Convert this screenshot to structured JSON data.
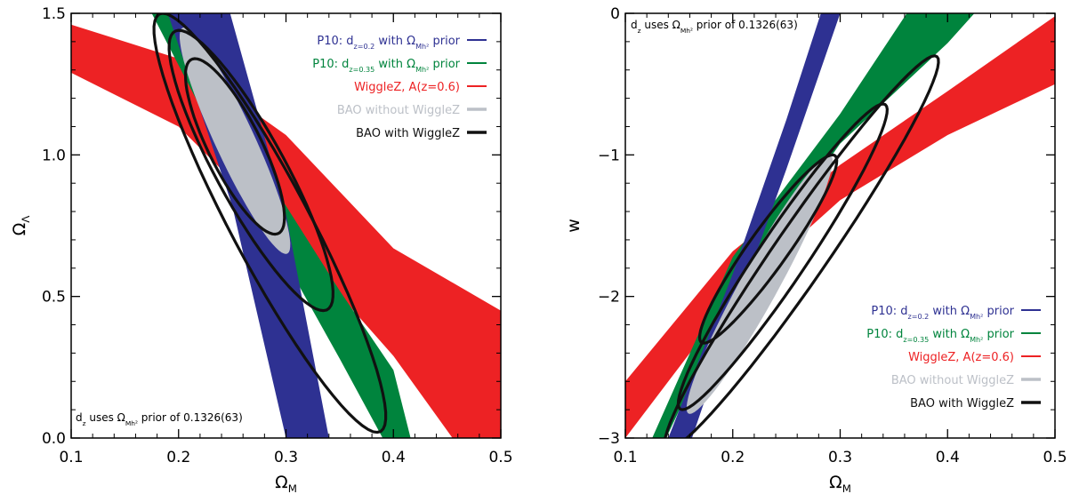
{
  "colors": {
    "blue": "#2e3192",
    "green": "#00843d",
    "red": "#ed2224",
    "grey": "#bcc0c7",
    "black": "#111111"
  },
  "chart_data": [
    {
      "type": "area",
      "xlabel": "Ω_M",
      "ylabel": "Ω_Λ",
      "xlim": [
        0.1,
        0.5
      ],
      "ylim": [
        0.0,
        1.5
      ],
      "x_ticks": [
        "0.1",
        "0.2",
        "0.3",
        "0.4",
        "0.5"
      ],
      "y_ticks": [
        "0.0",
        "0.5",
        "1.0",
        "1.5"
      ],
      "note": "d_z uses Ω_Mh² prior of 0.1326(63)",
      "note_position": "bottom-left",
      "legend_position": "top-right",
      "legend": [
        {
          "text": "P10: d_z=0.2 with Ω_Mh² prior",
          "color": "blue"
        },
        {
          "text": "P10: d_z=0.35 with Ω_Mh² prior",
          "color": "green"
        },
        {
          "text": "WiggleZ, A(z=0.6)",
          "color": "red"
        },
        {
          "text": "BAO without WiggleZ",
          "color": "grey"
        },
        {
          "text": "BAO with WiggleZ",
          "color": "black"
        }
      ],
      "bands": [
        {
          "series": "WiggleZ, A(z=0.6)",
          "color": "red",
          "lower": [
            [
              0.1,
              1.29
            ],
            [
              0.2,
              1.1
            ],
            [
              0.3,
              0.72
            ],
            [
              0.4,
              0.29
            ],
            [
              0.455,
              0.0
            ]
          ],
          "upper": [
            [
              0.1,
              1.46
            ],
            [
              0.2,
              1.34
            ],
            [
              0.3,
              1.07
            ],
            [
              0.4,
              0.67
            ],
            [
              0.5,
              0.45
            ],
            [
              0.5,
              0.0
            ]
          ]
        },
        {
          "series": "P10: d_z=0.35 with Ω_Mh² prior",
          "color": "green",
          "lower": [
            [
              0.175,
              1.5
            ],
            [
              0.25,
              0.95
            ],
            [
              0.3,
              0.62
            ],
            [
              0.35,
              0.28
            ],
            [
              0.39,
              0.0
            ]
          ],
          "upper": [
            [
              0.202,
              1.5
            ],
            [
              0.25,
              1.13
            ],
            [
              0.3,
              0.82
            ],
            [
              0.35,
              0.52
            ],
            [
              0.4,
              0.24
            ],
            [
              0.416,
              0.0
            ]
          ]
        },
        {
          "series": "P10: d_z=0.2 with Ω_Mh² prior",
          "color": "blue",
          "lower": [
            [
              0.19,
              1.5
            ],
            [
              0.25,
              0.82
            ],
            [
              0.3,
              0.0
            ]
          ],
          "upper": [
            [
              0.248,
              1.5
            ],
            [
              0.3,
              0.79
            ],
            [
              0.34,
              0.0
            ]
          ]
        }
      ],
      "filled_ellipses": [
        {
          "series": "BAO without WiggleZ",
          "color": "grey",
          "center": [
            0.253,
            0.98
          ],
          "ends": [
            [
              0.205,
              1.45
            ],
            [
              0.3,
              0.65
            ]
          ],
          "minor_halfwidth": 0.02
        }
      ],
      "contours": [
        {
          "level": "1σ",
          "center": [
            0.25,
            1.0
          ],
          "ends": [
            [
              0.215,
              1.34
            ],
            [
              0.29,
              0.72
            ]
          ],
          "minor_halfwidth": 0.027
        },
        {
          "level": "2σ",
          "center": [
            0.266,
            0.86
          ],
          "ends": [
            [
              0.2,
              1.44
            ],
            [
              0.335,
              0.45
            ]
          ],
          "minor_halfwidth": 0.036
        },
        {
          "level": "3σ",
          "center": [
            0.285,
            0.71
          ],
          "ends": [
            [
              0.185,
              1.5
            ],
            [
              0.385,
              0.02
            ]
          ],
          "minor_halfwidth": 0.041
        }
      ]
    },
    {
      "type": "area",
      "xlabel": "Ω_M",
      "ylabel": "w",
      "xlim": [
        0.1,
        0.5
      ],
      "ylim": [
        -3,
        0
      ],
      "x_ticks": [
        "0.1",
        "0.2",
        "0.3",
        "0.4",
        "0.5"
      ],
      "y_ticks": [
        "−3",
        "−2",
        "−1",
        "0"
      ],
      "note": "d_z uses Ω_Mh² prior of 0.1326(63)",
      "note_position": "top-left",
      "legend_position": "bottom-right",
      "legend": [
        {
          "text": "P10: d_z=0.2 with Ω_Mh² prior",
          "color": "blue"
        },
        {
          "text": "P10: d_z=0.35 with Ω_Mh² prior",
          "color": "green"
        },
        {
          "text": "WiggleZ, A(z=0.6)",
          "color": "red"
        },
        {
          "text": "BAO without WiggleZ",
          "color": "grey"
        },
        {
          "text": "BAO with WiggleZ",
          "color": "black"
        }
      ],
      "bands": [
        {
          "series": "WiggleZ, A(z=0.6)",
          "color": "red",
          "lower": [
            [
              0.1,
              -3.0
            ],
            [
              0.2,
              -2.0
            ],
            [
              0.3,
              -1.32
            ],
            [
              0.4,
              -0.86
            ],
            [
              0.5,
              -0.5
            ]
          ],
          "upper": [
            [
              0.1,
              -2.6
            ],
            [
              0.2,
              -1.68
            ],
            [
              0.3,
              -1.07
            ],
            [
              0.4,
              -0.55
            ],
            [
              0.5,
              -0.02
            ]
          ]
        },
        {
          "series": "P10: d_z=0.35 with Ω_Mh² prior",
          "color": "green",
          "lower": [
            [
              0.138,
              -3.0
            ],
            [
              0.2,
              -2.0
            ],
            [
              0.3,
              -0.92
            ],
            [
              0.4,
              -0.21
            ],
            [
              0.425,
              0.0
            ]
          ],
          "upper": [
            [
              0.125,
              -3.0
            ],
            [
              0.2,
              -1.72
            ],
            [
              0.3,
              -0.71
            ],
            [
              0.362,
              0.0
            ]
          ]
        },
        {
          "series": "P10: d_z=0.2 with Ω_Mh² prior",
          "color": "blue",
          "lower": [
            [
              0.162,
              -3.0
            ],
            [
              0.2,
              -2.15
            ],
            [
              0.25,
              -1.1
            ],
            [
              0.3,
              0.0
            ]
          ],
          "upper": [
            [
              0.14,
              -3.0
            ],
            [
              0.2,
              -1.84
            ],
            [
              0.25,
              -0.75
            ],
            [
              0.282,
              0.0
            ]
          ]
        }
      ],
      "filled_ellipses": [
        {
          "series": "BAO without WiggleZ",
          "color": "grey",
          "center": [
            0.225,
            -1.97
          ],
          "ends": [
            [
              0.16,
              -2.83
            ],
            [
              0.29,
              -1.0
            ]
          ],
          "minor_halfwidth": 0.02
        }
      ],
      "contours": [
        {
          "level": "1σ",
          "center": [
            0.233,
            -1.67
          ],
          "ends": [
            [
              0.173,
              -2.33
            ],
            [
              0.293,
              -1.0
            ]
          ],
          "minor_halfwidth": 0.022
        },
        {
          "level": "2σ",
          "center": [
            0.246,
            -1.72
          ],
          "ends": [
            [
              0.153,
              -2.8
            ],
            [
              0.34,
              -0.64
            ]
          ],
          "minor_halfwidth": 0.027
        },
        {
          "level": "3σ",
          "center": [
            0.264,
            -1.69
          ],
          "ends": [
            [
              0.14,
              -3.08
            ],
            [
              0.388,
              -0.3
            ]
          ],
          "minor_halfwidth": 0.03
        }
      ]
    }
  ]
}
